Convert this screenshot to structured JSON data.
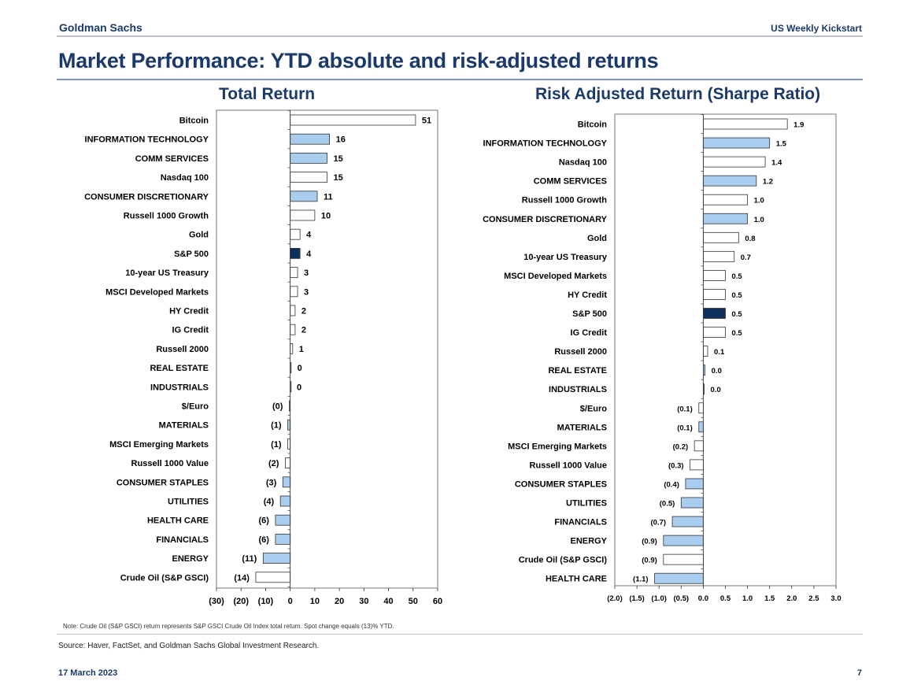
{
  "header": {
    "brand": "Goldman Sachs",
    "publication": "US Weekly Kickstart"
  },
  "page_title": "Market Performance: YTD absolute and risk-adjusted returns",
  "colors": {
    "navy": "#0e2e5c",
    "light_blue": "#a9cdef",
    "white": "#ffffff",
    "title_blue": "#1b3a6b"
  },
  "chart_data": [
    {
      "type": "bar",
      "orientation": "horizontal",
      "title": "Total Return",
      "categories": [
        "Bitcoin",
        "INFORMATION TECHNOLOGY",
        "COMM SERVICES",
        "Nasdaq 100",
        "CONSUMER DISCRETIONARY",
        "Russell 1000 Growth",
        "Gold",
        "S&P 500",
        "10-year US Treasury",
        "MSCI Developed Markets",
        "HY Credit",
        "IG Credit",
        "Russell 2000",
        "REAL ESTATE",
        "INDUSTRIALS",
        "$/Euro",
        "MATERIALS",
        "MSCI Emerging Markets",
        "Russell 1000 Value",
        "CONSUMER STAPLES",
        "UTILITIES",
        "HEALTH CARE",
        "FINANCIALS",
        "ENERGY",
        "Crude Oil (S&P GSCI)"
      ],
      "values": [
        51,
        16,
        15,
        15,
        11,
        10,
        4,
        4,
        3,
        3,
        2,
        2,
        1,
        0.3,
        0.1,
        -0.4,
        -1,
        -1,
        -2,
        -3,
        -4,
        -6,
        -6,
        -11,
        -14
      ],
      "data_labels": [
        "51",
        "16",
        "15",
        "15",
        "11",
        "10",
        "4",
        "4",
        "3",
        "3",
        "2",
        "2",
        "1",
        "0",
        "0",
        "(0)",
        "(1)",
        "(1)",
        "(2)",
        "(3)",
        "(4)",
        "(6)",
        "(6)",
        "(11)",
        "(14)"
      ],
      "fill": [
        "white",
        "light_blue",
        "light_blue",
        "white",
        "light_blue",
        "white",
        "white",
        "navy",
        "white",
        "white",
        "white",
        "white",
        "white",
        "light_blue",
        "light_blue",
        "white",
        "light_blue",
        "white",
        "white",
        "light_blue",
        "light_blue",
        "light_blue",
        "light_blue",
        "light_blue",
        "white"
      ],
      "xlim": [
        -30,
        60
      ],
      "xticks": [
        -30,
        -20,
        -10,
        0,
        10,
        20,
        30,
        40,
        50,
        60
      ],
      "xtick_labels": [
        "(30)",
        "(20)",
        "(10)",
        "0",
        "10",
        "20",
        "30",
        "40",
        "50",
        "60"
      ],
      "grid": false
    },
    {
      "type": "bar",
      "orientation": "horizontal",
      "title": "Risk Adjusted Return (Sharpe Ratio)",
      "categories": [
        "Bitcoin",
        "INFORMATION TECHNOLOGY",
        "Nasdaq 100",
        "COMM SERVICES",
        "Russell 1000 Growth",
        "CONSUMER DISCRETIONARY",
        "Gold",
        "10-year US Treasury",
        "MSCI Developed Markets",
        "HY Credit",
        "S&P 500",
        "IG Credit",
        "Russell 2000",
        "REAL ESTATE",
        "INDUSTRIALS",
        "$/Euro",
        "MATERIALS",
        "MSCI Emerging Markets",
        "Russell 1000 Value",
        "CONSUMER STAPLES",
        "UTILITIES",
        "FINANCIALS",
        "ENERGY",
        "Crude Oil (S&P GSCI)",
        "HEALTH CARE"
      ],
      "values": [
        1.9,
        1.5,
        1.4,
        1.2,
        1.0,
        1.0,
        0.8,
        0.7,
        0.5,
        0.5,
        0.5,
        0.5,
        0.1,
        0.04,
        0.02,
        -0.1,
        -0.1,
        -0.2,
        -0.3,
        -0.4,
        -0.5,
        -0.7,
        -0.9,
        -0.9,
        -1.1
      ],
      "data_labels": [
        "1.9",
        "1.5",
        "1.4",
        "1.2",
        "1.0",
        "1.0",
        "0.8",
        "0.7",
        "0.5",
        "0.5",
        "0.5",
        "0.5",
        "0.1",
        "0.0",
        "0.0",
        "(0.1)",
        "(0.1)",
        "(0.2)",
        "(0.3)",
        "(0.4)",
        "(0.5)",
        "(0.7)",
        "(0.9)",
        "(0.9)",
        "(1.1)"
      ],
      "fill": [
        "white",
        "light_blue",
        "white",
        "light_blue",
        "white",
        "light_blue",
        "white",
        "white",
        "white",
        "white",
        "navy",
        "white",
        "white",
        "light_blue",
        "light_blue",
        "white",
        "light_blue",
        "white",
        "white",
        "light_blue",
        "light_blue",
        "light_blue",
        "light_blue",
        "white",
        "light_blue"
      ],
      "xlim": [
        -2.0,
        3.0
      ],
      "xticks": [
        -2.0,
        -1.5,
        -1.0,
        -0.5,
        0.0,
        0.5,
        1.0,
        1.5,
        2.0,
        2.5,
        3.0
      ],
      "xtick_labels": [
        "(2.0)",
        "(1.5)",
        "(1.0)",
        "(0.5)",
        "0.0",
        "0.5",
        "1.0",
        "1.5",
        "2.0",
        "2.5",
        "3.0"
      ],
      "grid": false
    }
  ],
  "footer": {
    "note": "Note: Crude Oil (S&P GSCI) return represents S&P GSCI Crude Oil Index total return. Spot change equals (13)% YTD.",
    "source": "Source: Haver, FactSet, and Goldman Sachs Global Investment Research.",
    "date": "17 March 2023",
    "page": "7"
  }
}
